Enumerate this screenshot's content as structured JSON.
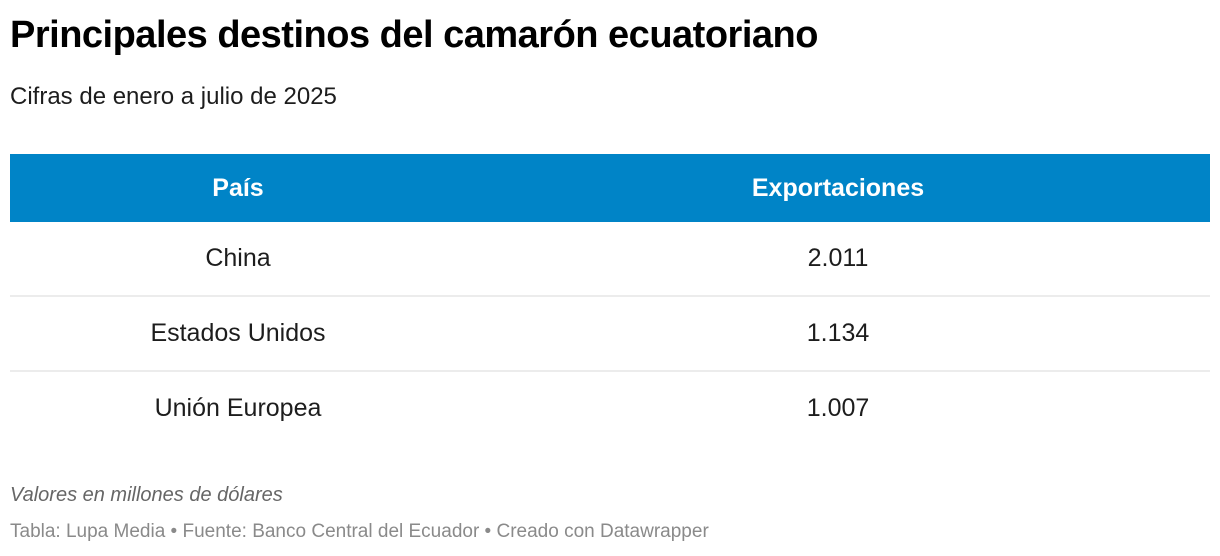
{
  "header": {
    "title": "Principales destinos del camarón ecuatoriano",
    "subtitle": "Cifras de enero a julio de 2025"
  },
  "table": {
    "header_color": "#0084c7",
    "columns": [
      "País",
      "Exportaciones"
    ],
    "rows": [
      {
        "country": "China",
        "value": "2.011"
      },
      {
        "country": "Estados Unidos",
        "value": "1.134"
      },
      {
        "country": "Unión Europea",
        "value": "1.007"
      }
    ]
  },
  "footer": {
    "note": "Valores en millones de dólares",
    "source": "Tabla: Lupa Media • Fuente: Banco Central del Ecuador • Creado con Datawrapper"
  },
  "chart_data": {
    "type": "table",
    "title": "Principales destinos del camarón ecuatoriano",
    "subtitle": "Cifras de enero a julio de 2025",
    "columns": [
      "País",
      "Exportaciones"
    ],
    "categories": [
      "China",
      "Estados Unidos",
      "Unión Europea"
    ],
    "values": [
      2011,
      1134,
      1007
    ],
    "unit": "millones de dólares",
    "note": "Valores en millones de dólares",
    "source": "Banco Central del Ecuador"
  }
}
